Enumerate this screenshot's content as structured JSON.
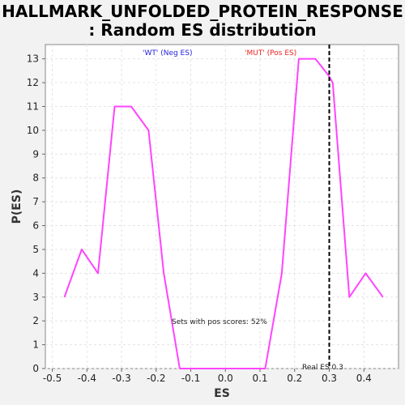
{
  "chart_data": {
    "type": "line",
    "title_line1": "HALLMARK_UNFOLDED_PROTEIN_RESPONSE",
    "title_line2": ": Random ES distribution",
    "xlabel": "ES",
    "ylabel": "P(ES)",
    "xlim": [
      -0.52,
      0.5
    ],
    "ylim": [
      0,
      13.6
    ],
    "x_ticks": [
      -0.5,
      -0.4,
      -0.3,
      -0.2,
      -0.1,
      0.0,
      0.1,
      0.2,
      0.3,
      0.4
    ],
    "x_tick_labels": [
      "-0.5",
      "-0.4",
      "-0.3",
      "-0.2",
      "-0.1",
      "0.0",
      "0.1",
      "0.2",
      "0.3",
      "0.4"
    ],
    "y_ticks": [
      0,
      1,
      2,
      3,
      4,
      5,
      6,
      7,
      8,
      9,
      10,
      11,
      12,
      13
    ],
    "y_tick_labels": [
      "0",
      "1",
      "2",
      "3",
      "4",
      "5",
      "6",
      "7",
      "8",
      "9",
      "10",
      "11",
      "12",
      "13"
    ],
    "grid": true,
    "series": [
      {
        "color": "#ff44ff",
        "x": [
          -0.465,
          -0.415,
          -0.368,
          -0.32,
          -0.272,
          -0.222,
          -0.178,
          -0.132,
          -0.083,
          0.015,
          0.115,
          0.163,
          0.212,
          0.26,
          0.298,
          0.31,
          0.358,
          0.405,
          0.455
        ],
        "y": [
          3,
          5,
          4,
          11,
          11,
          10,
          4,
          0,
          0,
          0,
          0,
          4,
          13,
          13,
          12.3,
          12,
          3,
          4,
          3
        ]
      }
    ],
    "real_es": 0.3,
    "annotations": {
      "neg_label": "'WT' (Neg ES)",
      "neg_color": "#2222dd",
      "pos_label": "'MUT' (Pos ES)",
      "pos_color": "#ee2222",
      "pos_scores": "Sets with pos scores: 52%",
      "real_es_label": "Real ES 0.3"
    }
  }
}
